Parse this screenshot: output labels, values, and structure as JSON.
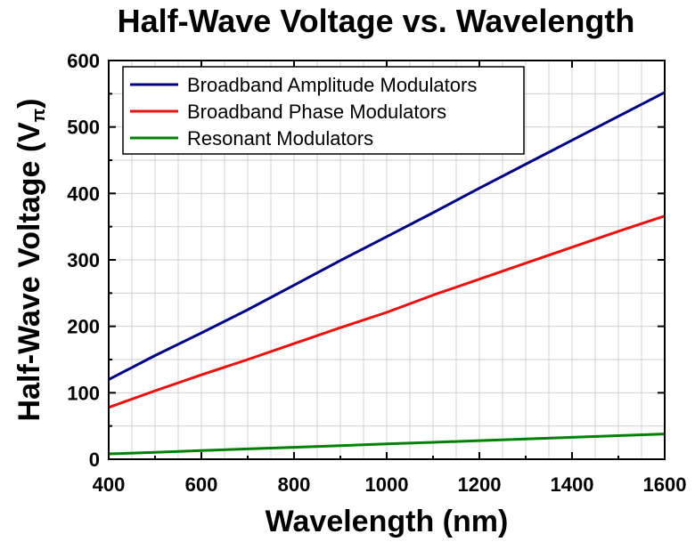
{
  "chart_data": {
    "type": "line",
    "title": "Half-Wave Voltage vs. Wavelength",
    "xlabel": "Wavelength (nm)",
    "ylabel": "Half-Wave Voltage (V",
    "ylabel_subscript": "π",
    "ylabel_close": ")",
    "xlim": [
      400,
      1600
    ],
    "ylim": [
      0,
      600
    ],
    "xticks": [
      400,
      600,
      800,
      1000,
      1200,
      1400,
      1600
    ],
    "yticks": [
      0,
      100,
      200,
      300,
      400,
      500,
      600
    ],
    "grid": true,
    "legend_position": "top-left",
    "x": [
      400,
      500,
      600,
      700,
      800,
      900,
      1000,
      1100,
      1200,
      1300,
      1400,
      1500,
      1600
    ],
    "series": [
      {
        "name": "Broadband Amplitude Modulators",
        "color": "#000080",
        "values": [
          120,
          156,
          190,
          225,
          262,
          299,
          335,
          371,
          408,
          444,
          480,
          516,
          552
        ]
      },
      {
        "name": "Broadband Phase Modulators",
        "color": "#e8110f",
        "values": [
          78,
          103,
          127,
          150,
          174,
          198,
          221,
          247,
          271,
          295,
          319,
          343,
          366
        ]
      },
      {
        "name": "Resonant Modulators",
        "color": "#008000",
        "values": [
          8,
          10.5,
          13,
          15.5,
          18,
          20.5,
          23,
          25.5,
          28,
          30.5,
          33,
          35.5,
          38
        ]
      }
    ]
  }
}
